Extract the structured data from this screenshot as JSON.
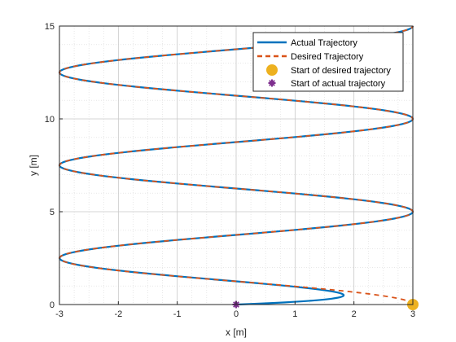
{
  "chart_data": {
    "type": "line",
    "title": "",
    "xlabel": "x [m]",
    "ylabel": "y [m]",
    "xlim": [
      -3,
      3
    ],
    "ylim": [
      0,
      15
    ],
    "xticks": [
      -3,
      -2,
      -1,
      0,
      1,
      2,
      3
    ],
    "yticks": [
      0,
      5,
      10,
      15
    ],
    "grid": true,
    "minor_grid": true,
    "legend_position": "top-right",
    "curve": {
      "form": "x = 3*cos(t), y = (2.5/pi)*t",
      "t_range": [
        0,
        18.85
      ]
    },
    "series": [
      {
        "name": "Actual Trajectory",
        "color": "#0072BD",
        "style": "solid"
      },
      {
        "name": "Desired Trajectory",
        "color": "#D95319",
        "style": "dashed"
      }
    ],
    "markers": [
      {
        "name": "Start of desired trajectory",
        "x": 3,
        "y": 0,
        "color": "#EDB120",
        "shape": "circle"
      },
      {
        "name": "Start of actual trajectory",
        "x": 0,
        "y": 0,
        "color": "#7E2F8E",
        "shape": "asterisk"
      }
    ]
  }
}
